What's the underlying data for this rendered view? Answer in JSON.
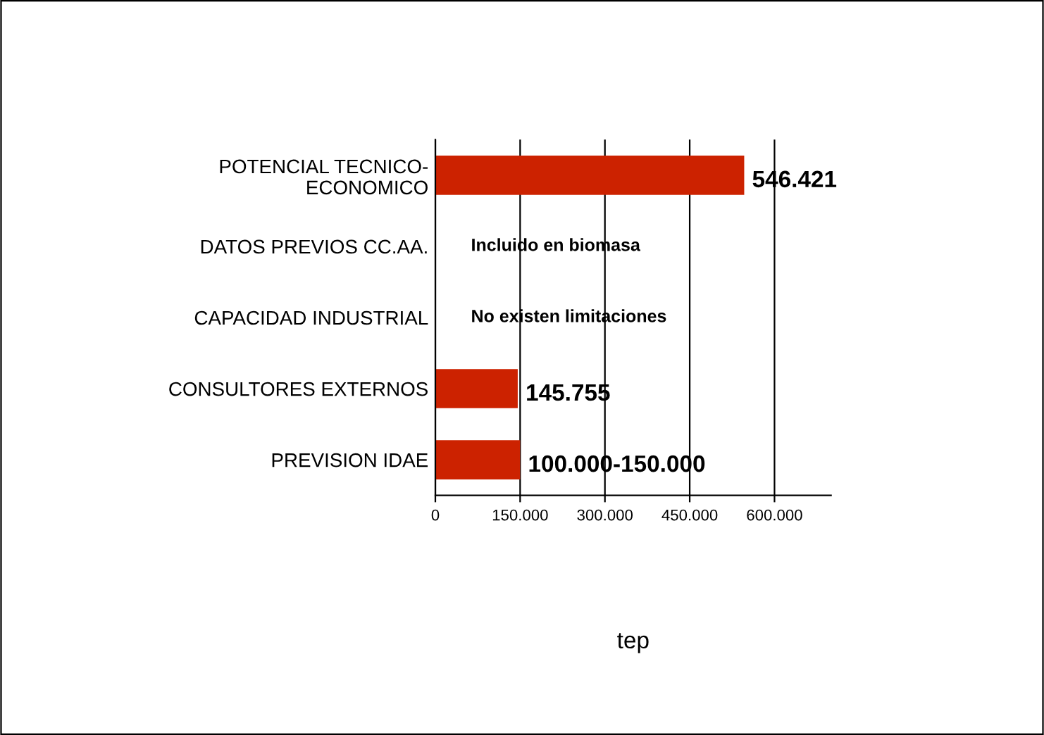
{
  "chart_data": {
    "type": "bar",
    "orientation": "horizontal",
    "xlabel": "tep",
    "categories": [
      "POTENCIAL TECNICO-\nECONOMICO",
      "DATOS PREVIOS CC.AA.",
      "CAPACIDAD INDUSTRIAL",
      "CONSULTORES EXTERNOS",
      "PREVISION IDAE"
    ],
    "values": [
      546421,
      null,
      null,
      145755,
      150000
    ],
    "value_labels": [
      "546.421",
      "Incluido en biomasa",
      "No existen limitaciones",
      "145.755",
      "100.000-150.000"
    ],
    "color": "#cc2200",
    "xlim": [
      0,
      700000
    ],
    "xticks": [
      0,
      {
        "value": 150000,
        "label": "150.000"
      },
      {
        "value": 300000,
        "label": "300.000"
      },
      {
        "value": 450000,
        "label": "450.000"
      },
      {
        "value": 600000,
        "label": "600.000"
      }
    ],
    "grid": "x"
  }
}
